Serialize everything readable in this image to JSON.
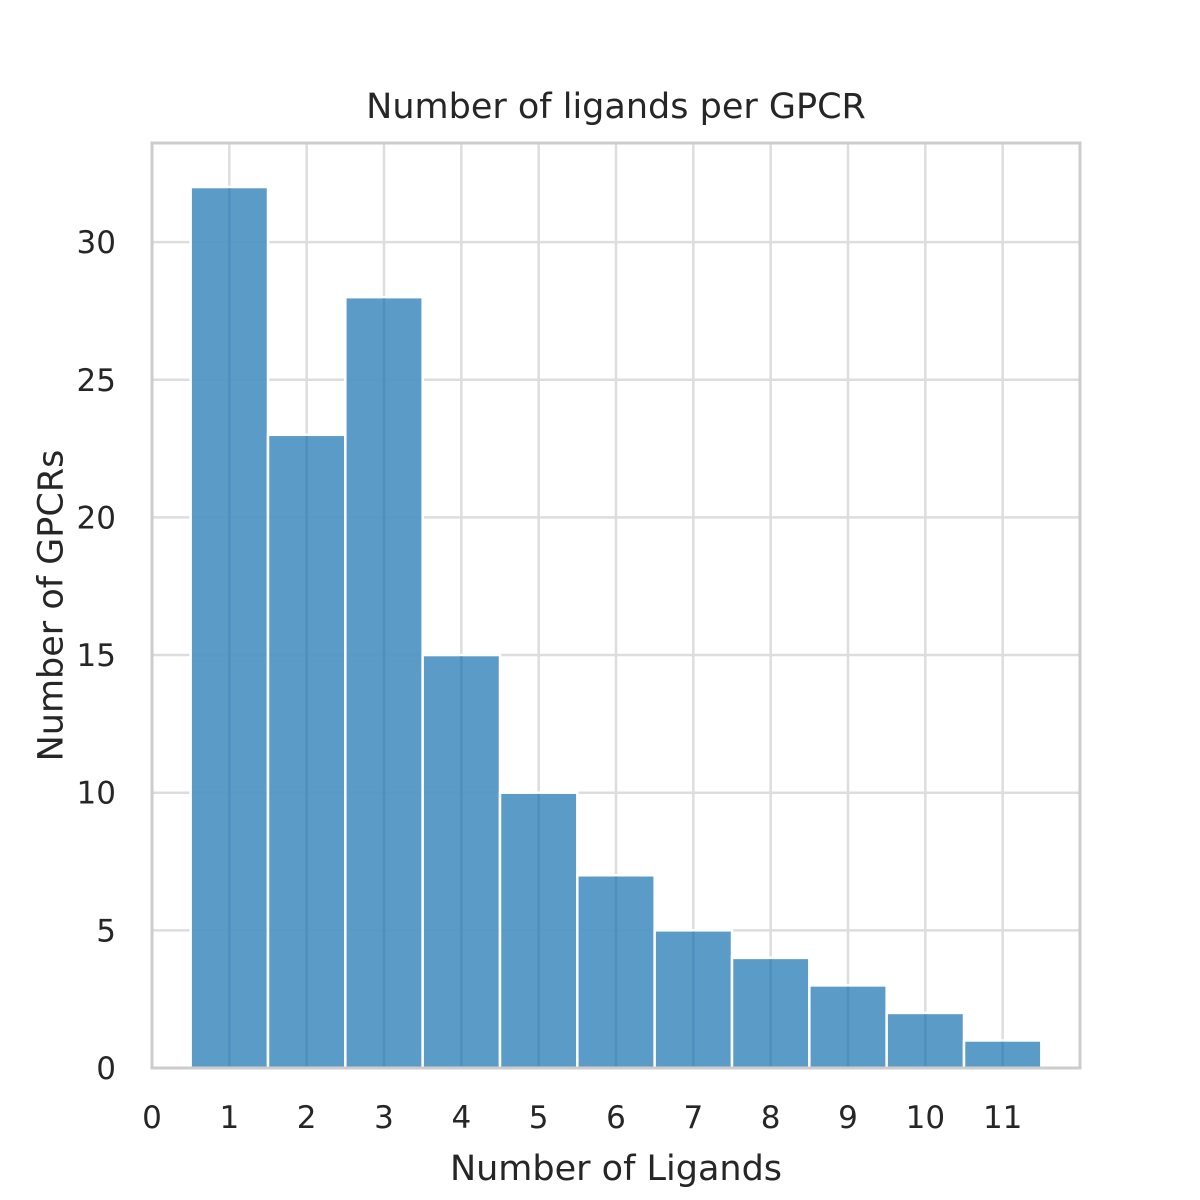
{
  "chart_data": {
    "type": "bar",
    "title": "Number of ligands per GPCR",
    "xlabel": "Number of Ligands",
    "ylabel": "Number of GPCRs",
    "categories": [
      1,
      2,
      3,
      4,
      5,
      6,
      7,
      8,
      9,
      10,
      11
    ],
    "values": [
      32,
      23,
      28,
      15,
      10,
      7,
      5,
      4,
      3,
      2,
      1
    ],
    "bin_width": 1,
    "xlim": [
      0,
      12
    ],
    "ylim": [
      0,
      33.6
    ],
    "xticks": [
      0,
      1,
      2,
      3,
      4,
      5,
      6,
      7,
      8,
      9,
      10,
      11
    ],
    "yticks": [
      0,
      5,
      10,
      15,
      20,
      25,
      30
    ],
    "grid": true,
    "colors": {
      "bar": "#4c92c3",
      "bar_edge": "#ffffff",
      "grid": "#dddddd",
      "frame": "#cccccc",
      "text": "#262626"
    }
  }
}
